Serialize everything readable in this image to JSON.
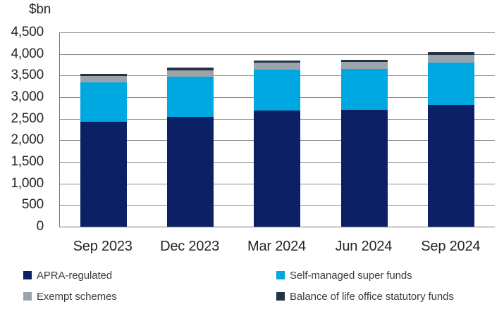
{
  "chart_data": {
    "type": "bar",
    "stacked": true,
    "title": "$bn",
    "categories": [
      "Sep 2023",
      "Dec 2023",
      "Mar 2024",
      "Jun 2024",
      "Sep 2024"
    ],
    "series": [
      {
        "name": "APRA-regulated",
        "color": "#0b2065",
        "values": [
          2425,
          2545,
          2690,
          2705,
          2815
        ]
      },
      {
        "name": "Self-managed super funds",
        "color": "#00a8e1",
        "values": [
          915,
          925,
          945,
          955,
          980
        ]
      },
      {
        "name": "Exempt schemes",
        "color": "#9ba4ac",
        "values": [
          145,
          150,
          160,
          150,
          185
        ]
      },
      {
        "name": "Balance of life office statutory funds",
        "color": "#243444",
        "values": [
          60,
          60,
          60,
          60,
          60
        ]
      }
    ],
    "totals": [
      3545,
      3680,
      3855,
      3870,
      4040
    ],
    "ylabel": "$bn",
    "xlabel": "",
    "ylim": [
      0,
      4500
    ],
    "ytick_interval": 500,
    "y_tick_labels": [
      "0",
      "500",
      "1,000",
      "1,500",
      "2,000",
      "2,500",
      "3,000",
      "3,500",
      "4,000",
      "4,500"
    ],
    "grid": true,
    "legend_position": "bottom"
  }
}
